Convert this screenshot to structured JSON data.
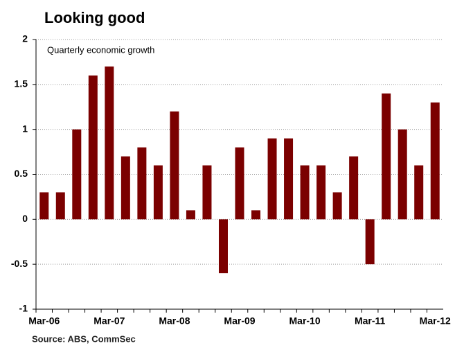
{
  "chart_data": {
    "type": "bar",
    "title": "Looking good",
    "subtitle": "Quarterly economic growth",
    "source": "Source: ABS, CommSec",
    "categories": [
      "Mar-06",
      null,
      null,
      null,
      "Mar-07",
      null,
      null,
      null,
      "Mar-08",
      null,
      null,
      null,
      "Mar-09",
      null,
      null,
      null,
      "Mar-10",
      null,
      null,
      null,
      "Mar-11",
      null,
      null,
      null,
      "Mar-12"
    ],
    "values": [
      0.3,
      0.3,
      1.0,
      1.6,
      1.7,
      0.7,
      0.8,
      0.6,
      1.2,
      0.1,
      0.6,
      -0.6,
      0.8,
      0.1,
      0.9,
      0.9,
      0.6,
      0.6,
      0.3,
      0.7,
      -0.5,
      1.4,
      1.0,
      0.6,
      1.3
    ],
    "color": "#7b0000",
    "ylim": [
      -1,
      2
    ],
    "yticks": [
      -1,
      -0.5,
      0,
      0.5,
      1,
      1.5,
      2
    ],
    "grid": true
  }
}
